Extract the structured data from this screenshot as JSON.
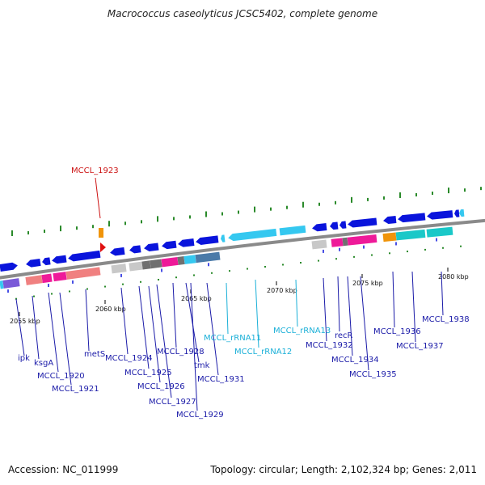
{
  "title": "Macrococcus caseolyticus JCSC5402, complete genome",
  "footer": {
    "accession": "Accession: NC_011999",
    "summary": "Topology: circular; Length: 2,102,324 bp; Genes: 2,011"
  },
  "colors": {
    "backbone": "#8a8a8a",
    "gc_tick": "#2a8a2a",
    "gene_blue": "#0a14dc",
    "label_blue": "#1a1aa8",
    "label_red": "#cc1111",
    "label_cyan": "#1bb0d8",
    "rrna": "#35c8f0",
    "pink_salmon": "#f08080",
    "magenta": "#ee1a99",
    "purple": "#7a5ad8",
    "gray_light": "#c8c8c8",
    "gray_dark": "#707070",
    "teal": "#1ac8c8",
    "steel": "#4a7aa8",
    "orange": "#f0940a",
    "red": "#e01010"
  },
  "kbp_ticks": [
    "2055 kbp",
    "2060 kbp",
    "2065 kbp",
    "2070 kbp",
    "2075 kbp",
    "2080 kbp"
  ],
  "gene_labels": [
    {
      "text": "MCCL_1923",
      "color": "red"
    },
    {
      "text": "ipk",
      "color": "blue"
    },
    {
      "text": "ksgA",
      "color": "blue"
    },
    {
      "text": "MCCL_1920",
      "color": "blue"
    },
    {
      "text": "MCCL_1921",
      "color": "blue"
    },
    {
      "text": "metS",
      "color": "blue"
    },
    {
      "text": "MCCL_1924",
      "color": "blue"
    },
    {
      "text": "MCCL_1925",
      "color": "blue"
    },
    {
      "text": "MCCL_1926",
      "color": "blue"
    },
    {
      "text": "MCCL_1927",
      "color": "blue"
    },
    {
      "text": "MCCL_1928",
      "color": "blue"
    },
    {
      "text": "tmk",
      "color": "blue"
    },
    {
      "text": "MCCL_1929",
      "color": "blue"
    },
    {
      "text": "MCCL_1931",
      "color": "blue"
    },
    {
      "text": "MCCL_rRNA11",
      "color": "cyan"
    },
    {
      "text": "MCCL_rRNA12",
      "color": "cyan"
    },
    {
      "text": "MCCL_rRNA13",
      "color": "cyan"
    },
    {
      "text": "MCCL_1932",
      "color": "blue"
    },
    {
      "text": "recR",
      "color": "blue"
    },
    {
      "text": "MCCL_1934",
      "color": "blue"
    },
    {
      "text": "MCCL_1935",
      "color": "blue"
    },
    {
      "text": "MCCL_1936",
      "color": "blue"
    },
    {
      "text": "MCCL_1937",
      "color": "blue"
    },
    {
      "text": "MCCL_1938",
      "color": "blue"
    }
  ]
}
